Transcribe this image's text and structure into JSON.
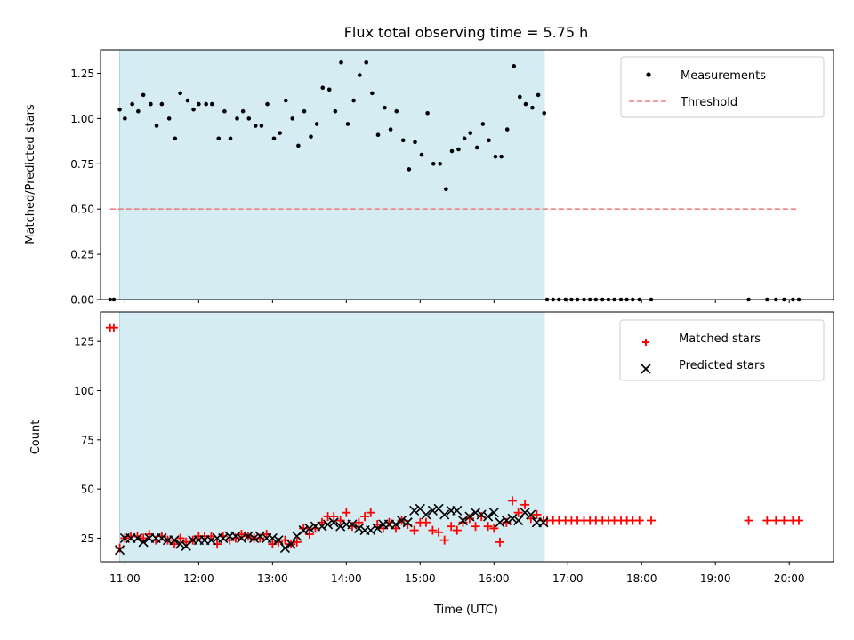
{
  "chart_data": [
    {
      "type": "scatter",
      "title": "Flux total observing time = 5.75 h",
      "xlabel": "",
      "ylabel": "Matched/Predicted stars",
      "ylim": [
        0,
        1.38
      ],
      "yticks": [
        0.0,
        0.25,
        0.5,
        0.75,
        1.0,
        1.25
      ],
      "ytick_labels": [
        "0.00",
        "0.25",
        "0.50",
        "0.75",
        "1.00",
        "1.25"
      ],
      "xlim_hours": [
        10.67,
        20.6
      ],
      "shaded_interval_hours": [
        10.93,
        16.68
      ],
      "shade_color": "#d5ecf2",
      "legend_placement": "upper right",
      "series": [
        {
          "name": "Measurements",
          "marker": "dot",
          "color": "#000000",
          "points": [
            [
              10.8,
              0.0
            ],
            [
              10.85,
              0.0
            ],
            [
              10.93,
              1.05
            ],
            [
              11.0,
              1.0
            ],
            [
              11.1,
              1.08
            ],
            [
              11.18,
              1.04
            ],
            [
              11.25,
              1.13
            ],
            [
              11.35,
              1.08
            ],
            [
              11.43,
              0.96
            ],
            [
              11.5,
              1.08
            ],
            [
              11.6,
              1.0
            ],
            [
              11.68,
              0.89
            ],
            [
              11.75,
              1.14
            ],
            [
              11.85,
              1.1
            ],
            [
              11.93,
              1.05
            ],
            [
              12.0,
              1.08
            ],
            [
              12.1,
              1.08
            ],
            [
              12.18,
              1.08
            ],
            [
              12.27,
              0.89
            ],
            [
              12.35,
              1.04
            ],
            [
              12.43,
              0.89
            ],
            [
              12.52,
              1.0
            ],
            [
              12.6,
              1.04
            ],
            [
              12.68,
              1.0
            ],
            [
              12.77,
              0.96
            ],
            [
              12.85,
              0.96
            ],
            [
              12.93,
              1.08
            ],
            [
              13.02,
              0.89
            ],
            [
              13.1,
              0.92
            ],
            [
              13.18,
              1.1
            ],
            [
              13.27,
              1.0
            ],
            [
              13.35,
              0.85
            ],
            [
              13.43,
              1.04
            ],
            [
              13.52,
              0.9
            ],
            [
              13.6,
              0.97
            ],
            [
              13.68,
              1.17
            ],
            [
              13.77,
              1.16
            ],
            [
              13.85,
              1.04
            ],
            [
              13.93,
              1.31
            ],
            [
              14.02,
              0.97
            ],
            [
              14.1,
              1.1
            ],
            [
              14.18,
              1.24
            ],
            [
              14.27,
              1.31
            ],
            [
              14.35,
              1.14
            ],
            [
              14.43,
              0.91
            ],
            [
              14.52,
              1.06
            ],
            [
              14.6,
              0.94
            ],
            [
              14.68,
              1.04
            ],
            [
              14.77,
              0.88
            ],
            [
              14.85,
              0.72
            ],
            [
              14.93,
              0.87
            ],
            [
              15.02,
              0.8
            ],
            [
              15.1,
              1.03
            ],
            [
              15.18,
              0.75
            ],
            [
              15.27,
              0.75
            ],
            [
              15.35,
              0.61
            ],
            [
              15.43,
              0.82
            ],
            [
              15.52,
              0.83
            ],
            [
              15.6,
              0.89
            ],
            [
              15.68,
              0.92
            ],
            [
              15.77,
              0.84
            ],
            [
              15.85,
              0.97
            ],
            [
              15.93,
              0.88
            ],
            [
              16.02,
              0.79
            ],
            [
              16.1,
              0.79
            ],
            [
              16.18,
              0.94
            ],
            [
              16.27,
              1.29
            ],
            [
              16.35,
              1.12
            ],
            [
              16.43,
              1.08
            ],
            [
              16.52,
              1.06
            ],
            [
              16.6,
              1.13
            ],
            [
              16.68,
              1.03
            ],
            [
              16.72,
              0.0
            ],
            [
              16.8,
              0.0
            ],
            [
              16.88,
              0.0
            ],
            [
              16.97,
              0.0
            ],
            [
              17.05,
              0.0
            ],
            [
              17.13,
              0.0
            ],
            [
              17.22,
              0.0
            ],
            [
              17.3,
              0.0
            ],
            [
              17.38,
              0.0
            ],
            [
              17.47,
              0.0
            ],
            [
              17.55,
              0.0
            ],
            [
              17.63,
              0.0
            ],
            [
              17.72,
              0.0
            ],
            [
              17.8,
              0.0
            ],
            [
              17.88,
              0.0
            ],
            [
              17.97,
              0.0
            ],
            [
              18.13,
              0.0
            ],
            [
              19.45,
              0.0
            ],
            [
              19.7,
              0.0
            ],
            [
              19.82,
              0.0
            ],
            [
              19.93,
              0.0
            ],
            [
              20.05,
              0.0
            ],
            [
              20.13,
              0.0
            ]
          ]
        },
        {
          "name": "Threshold",
          "marker": "dashed-line",
          "color": "#f08080",
          "points": [
            [
              10.8,
              0.5
            ],
            [
              20.13,
              0.5
            ]
          ]
        }
      ]
    },
    {
      "type": "scatter",
      "title": "",
      "xlabel": "Time (UTC)",
      "ylabel": "Count",
      "ylim": [
        13,
        140
      ],
      "yticks": [
        25,
        50,
        75,
        100,
        125
      ],
      "ytick_labels": [
        "25",
        "50",
        "75",
        "100",
        "125"
      ],
      "xlim_hours": [
        10.67,
        20.6
      ],
      "xticks_hours": [
        11,
        12,
        13,
        14,
        15,
        16,
        17,
        18,
        19,
        20
      ],
      "xtick_labels": [
        "11:00",
        "12:00",
        "13:00",
        "14:00",
        "15:00",
        "16:00",
        "17:00",
        "18:00",
        "19:00",
        "20:00"
      ],
      "shaded_interval_hours": [
        10.93,
        16.68
      ],
      "shade_color": "#d5ecf2",
      "legend_placement": "upper right",
      "series": [
        {
          "name": "Matched stars",
          "marker": "plus",
          "color": "#ff0000",
          "points": [
            [
              10.8,
              132
            ],
            [
              10.85,
              132
            ],
            [
              10.93,
              20
            ],
            [
              11.0,
              25
            ],
            [
              11.08,
              26
            ],
            [
              11.17,
              26
            ],
            [
              11.25,
              25
            ],
            [
              11.33,
              27
            ],
            [
              11.42,
              24
            ],
            [
              11.5,
              26
            ],
            [
              11.58,
              24
            ],
            [
              11.67,
              22
            ],
            [
              11.75,
              25
            ],
            [
              11.83,
              23
            ],
            [
              11.92,
              24
            ],
            [
              12.0,
              26
            ],
            [
              12.08,
              26
            ],
            [
              12.17,
              26
            ],
            [
              12.25,
              22
            ],
            [
              12.33,
              26
            ],
            [
              12.42,
              24
            ],
            [
              12.5,
              25
            ],
            [
              12.58,
              27
            ],
            [
              12.67,
              26
            ],
            [
              12.75,
              25
            ],
            [
              12.83,
              25
            ],
            [
              12.92,
              27
            ],
            [
              13.0,
              22
            ],
            [
              13.08,
              23
            ],
            [
              13.17,
              24
            ],
            [
              13.25,
              22
            ],
            [
              13.33,
              23
            ],
            [
              13.42,
              30
            ],
            [
              13.5,
              27
            ],
            [
              13.58,
              30
            ],
            [
              13.67,
              33
            ],
            [
              13.75,
              36
            ],
            [
              13.83,
              36
            ],
            [
              13.92,
              34
            ],
            [
              14.0,
              38
            ],
            [
              14.08,
              31
            ],
            [
              14.17,
              33
            ],
            [
              14.25,
              36
            ],
            [
              14.33,
              38
            ],
            [
              14.42,
              32
            ],
            [
              14.5,
              30
            ],
            [
              14.58,
              33
            ],
            [
              14.67,
              30
            ],
            [
              14.75,
              34
            ],
            [
              14.83,
              32
            ],
            [
              14.92,
              29
            ],
            [
              15.0,
              33
            ],
            [
              15.08,
              33
            ],
            [
              15.17,
              29
            ],
            [
              15.25,
              28
            ],
            [
              15.33,
              24
            ],
            [
              15.42,
              31
            ],
            [
              15.5,
              29
            ],
            [
              15.58,
              33
            ],
            [
              15.67,
              35
            ],
            [
              15.75,
              31
            ],
            [
              15.83,
              36
            ],
            [
              15.92,
              31
            ],
            [
              16.0,
              30
            ],
            [
              16.08,
              23
            ],
            [
              16.17,
              33
            ],
            [
              16.25,
              44
            ],
            [
              16.33,
              38
            ],
            [
              16.42,
              42
            ],
            [
              16.5,
              35
            ],
            [
              16.58,
              37
            ],
            [
              16.67,
              34
            ],
            [
              16.72,
              34
            ],
            [
              16.8,
              34
            ],
            [
              16.88,
              34
            ],
            [
              16.97,
              34
            ],
            [
              17.05,
              34
            ],
            [
              17.13,
              34
            ],
            [
              17.22,
              34
            ],
            [
              17.3,
              34
            ],
            [
              17.38,
              34
            ],
            [
              17.47,
              34
            ],
            [
              17.55,
              34
            ],
            [
              17.63,
              34
            ],
            [
              17.72,
              34
            ],
            [
              17.8,
              34
            ],
            [
              17.88,
              34
            ],
            [
              17.97,
              34
            ],
            [
              18.13,
              34
            ],
            [
              19.45,
              34
            ],
            [
              19.7,
              34
            ],
            [
              19.82,
              34
            ],
            [
              19.93,
              34
            ],
            [
              20.05,
              34
            ],
            [
              20.13,
              34
            ]
          ]
        },
        {
          "name": "Predicted stars",
          "marker": "x",
          "color": "#000000",
          "points": [
            [
              10.93,
              19
            ],
            [
              11.0,
              25
            ],
            [
              11.08,
              25
            ],
            [
              11.17,
              25
            ],
            [
              11.25,
              23
            ],
            [
              11.33,
              25
            ],
            [
              11.42,
              25
            ],
            [
              11.5,
              25
            ],
            [
              11.58,
              24
            ],
            [
              11.67,
              24
            ],
            [
              11.75,
              22
            ],
            [
              11.83,
              21
            ],
            [
              11.92,
              24
            ],
            [
              12.0,
              24
            ],
            [
              12.08,
              24
            ],
            [
              12.17,
              24
            ],
            [
              12.25,
              25
            ],
            [
              12.33,
              25
            ],
            [
              12.42,
              26
            ],
            [
              12.5,
              26
            ],
            [
              12.58,
              25
            ],
            [
              12.67,
              26
            ],
            [
              12.75,
              25
            ],
            [
              12.83,
              26
            ],
            [
              12.92,
              25
            ],
            [
              13.0,
              25
            ],
            [
              13.08,
              24
            ],
            [
              13.17,
              20
            ],
            [
              13.25,
              22
            ],
            [
              13.33,
              26
            ],
            [
              13.42,
              29
            ],
            [
              13.5,
              30
            ],
            [
              13.58,
              31
            ],
            [
              13.67,
              31
            ],
            [
              13.75,
              32
            ],
            [
              13.83,
              33
            ],
            [
              13.92,
              31
            ],
            [
              14.0,
              32
            ],
            [
              14.08,
              32
            ],
            [
              14.17,
              30
            ],
            [
              14.25,
              29
            ],
            [
              14.33,
              29
            ],
            [
              14.42,
              30
            ],
            [
              14.5,
              32
            ],
            [
              14.58,
              32
            ],
            [
              14.67,
              32
            ],
            [
              14.75,
              34
            ],
            [
              14.83,
              33
            ],
            [
              14.92,
              39
            ],
            [
              15.0,
              40
            ],
            [
              15.08,
              37
            ],
            [
              15.17,
              39
            ],
            [
              15.25,
              40
            ],
            [
              15.33,
              37
            ],
            [
              15.42,
              39
            ],
            [
              15.5,
              39
            ],
            [
              15.58,
              34
            ],
            [
              15.67,
              36
            ],
            [
              15.75,
              38
            ],
            [
              15.83,
              37
            ],
            [
              15.92,
              36
            ],
            [
              16.0,
              38
            ],
            [
              16.08,
              33
            ],
            [
              16.17,
              34
            ],
            [
              16.25,
              35
            ],
            [
              16.33,
              34
            ],
            [
              16.42,
              38
            ],
            [
              16.5,
              37
            ],
            [
              16.58,
              33
            ],
            [
              16.67,
              33
            ]
          ]
        }
      ]
    }
  ]
}
